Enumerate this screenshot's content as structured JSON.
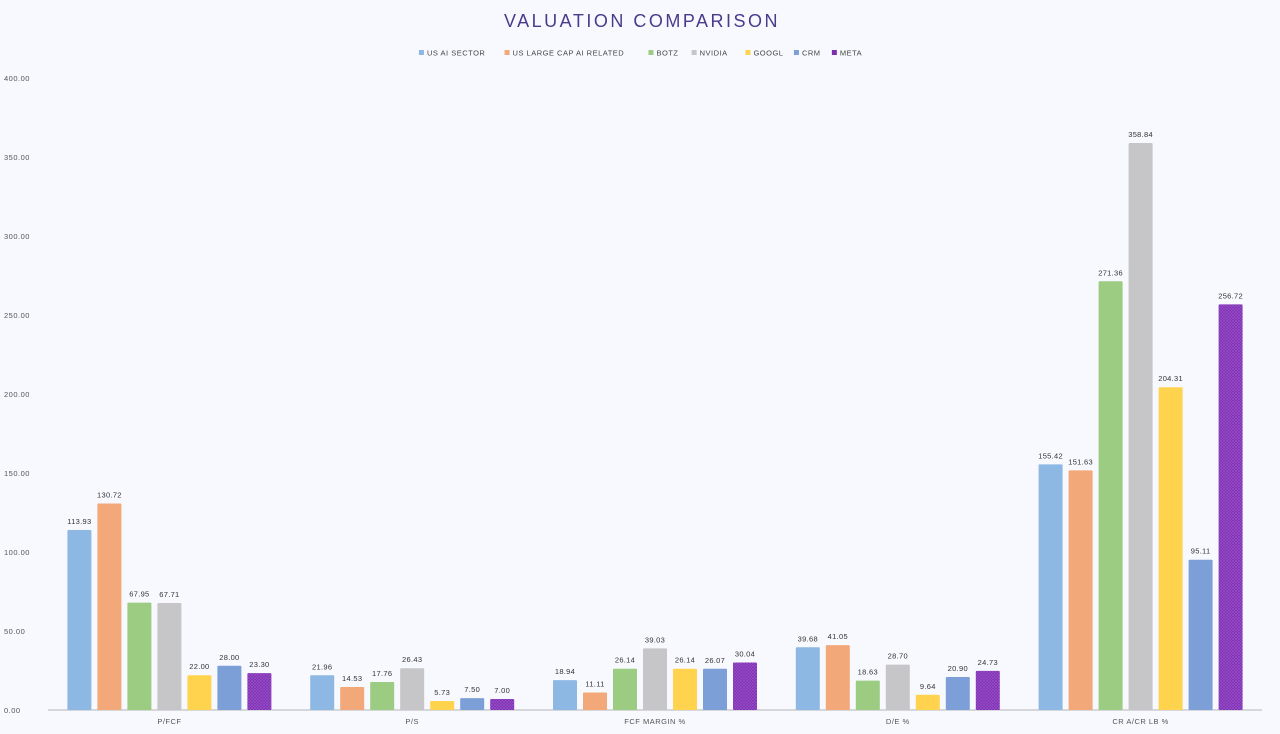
{
  "chart_data": {
    "type": "bar",
    "title": "VALUATION COMPARISON",
    "categories": [
      "P/FCF",
      "P/S",
      "FCF MARGIN %",
      "D/E %",
      "CR A/CR LB %"
    ],
    "series": [
      {
        "name": "US AI SECTOR",
        "color": "#8db8e4",
        "values": [
          113.93,
          21.96,
          18.94,
          39.68,
          155.42
        ],
        "labels": [
          "113.93",
          "21.96",
          "18.94",
          "39.68",
          "155.42"
        ]
      },
      {
        "name": "US LARGE CAP AI RELATED",
        "color": "#f2a878",
        "values": [
          130.72,
          14.53,
          11.11,
          41.05,
          151.63
        ],
        "labels": [
          "130.72",
          "14.53",
          "11.11",
          "41.05",
          "151.63"
        ]
      },
      {
        "name": "BOTZ",
        "color": "#9ccb82",
        "values": [
          67.95,
          17.76,
          26.14,
          18.63,
          271.36
        ],
        "labels": [
          "67.95",
          "17.76",
          "26.14",
          "18.63",
          "271.36"
        ]
      },
      {
        "name": "NVIDIA",
        "color": "#c6c6c9",
        "values": [
          67.71,
          26.43,
          39.03,
          28.7,
          358.84
        ],
        "labels": [
          "67.71",
          "26.43",
          "39.03",
          "28.70",
          "358.84"
        ]
      },
      {
        "name": "GOOGL",
        "color": "#ffd34e",
        "values": [
          22.0,
          5.73,
          26.14,
          9.64,
          204.31
        ],
        "labels": [
          "22.00",
          "5.73",
          "26.14",
          "9.64",
          "204.31"
        ]
      },
      {
        "name": "CRM",
        "color": "#7c9fd8",
        "values": [
          28.0,
          7.5,
          26.07,
          20.9,
          95.11
        ],
        "labels": [
          "28.00",
          "7.50",
          "26.07",
          "20.90",
          "95.11"
        ]
      },
      {
        "name": "META",
        "color": "#7d2fb0",
        "values": [
          23.3,
          7.0,
          30.04,
          24.73,
          256.72
        ],
        "labels": [
          "23.30",
          "7.00",
          "30.04",
          "24.73",
          "256.72"
        ]
      }
    ],
    "ylim": [
      0,
      400
    ],
    "yticks": [
      "0.00",
      "50.00",
      "100.00",
      "150.00",
      "200.00",
      "250.00",
      "300.00",
      "350.00",
      "400.00"
    ],
    "grid": false,
    "legend_position": "top"
  }
}
